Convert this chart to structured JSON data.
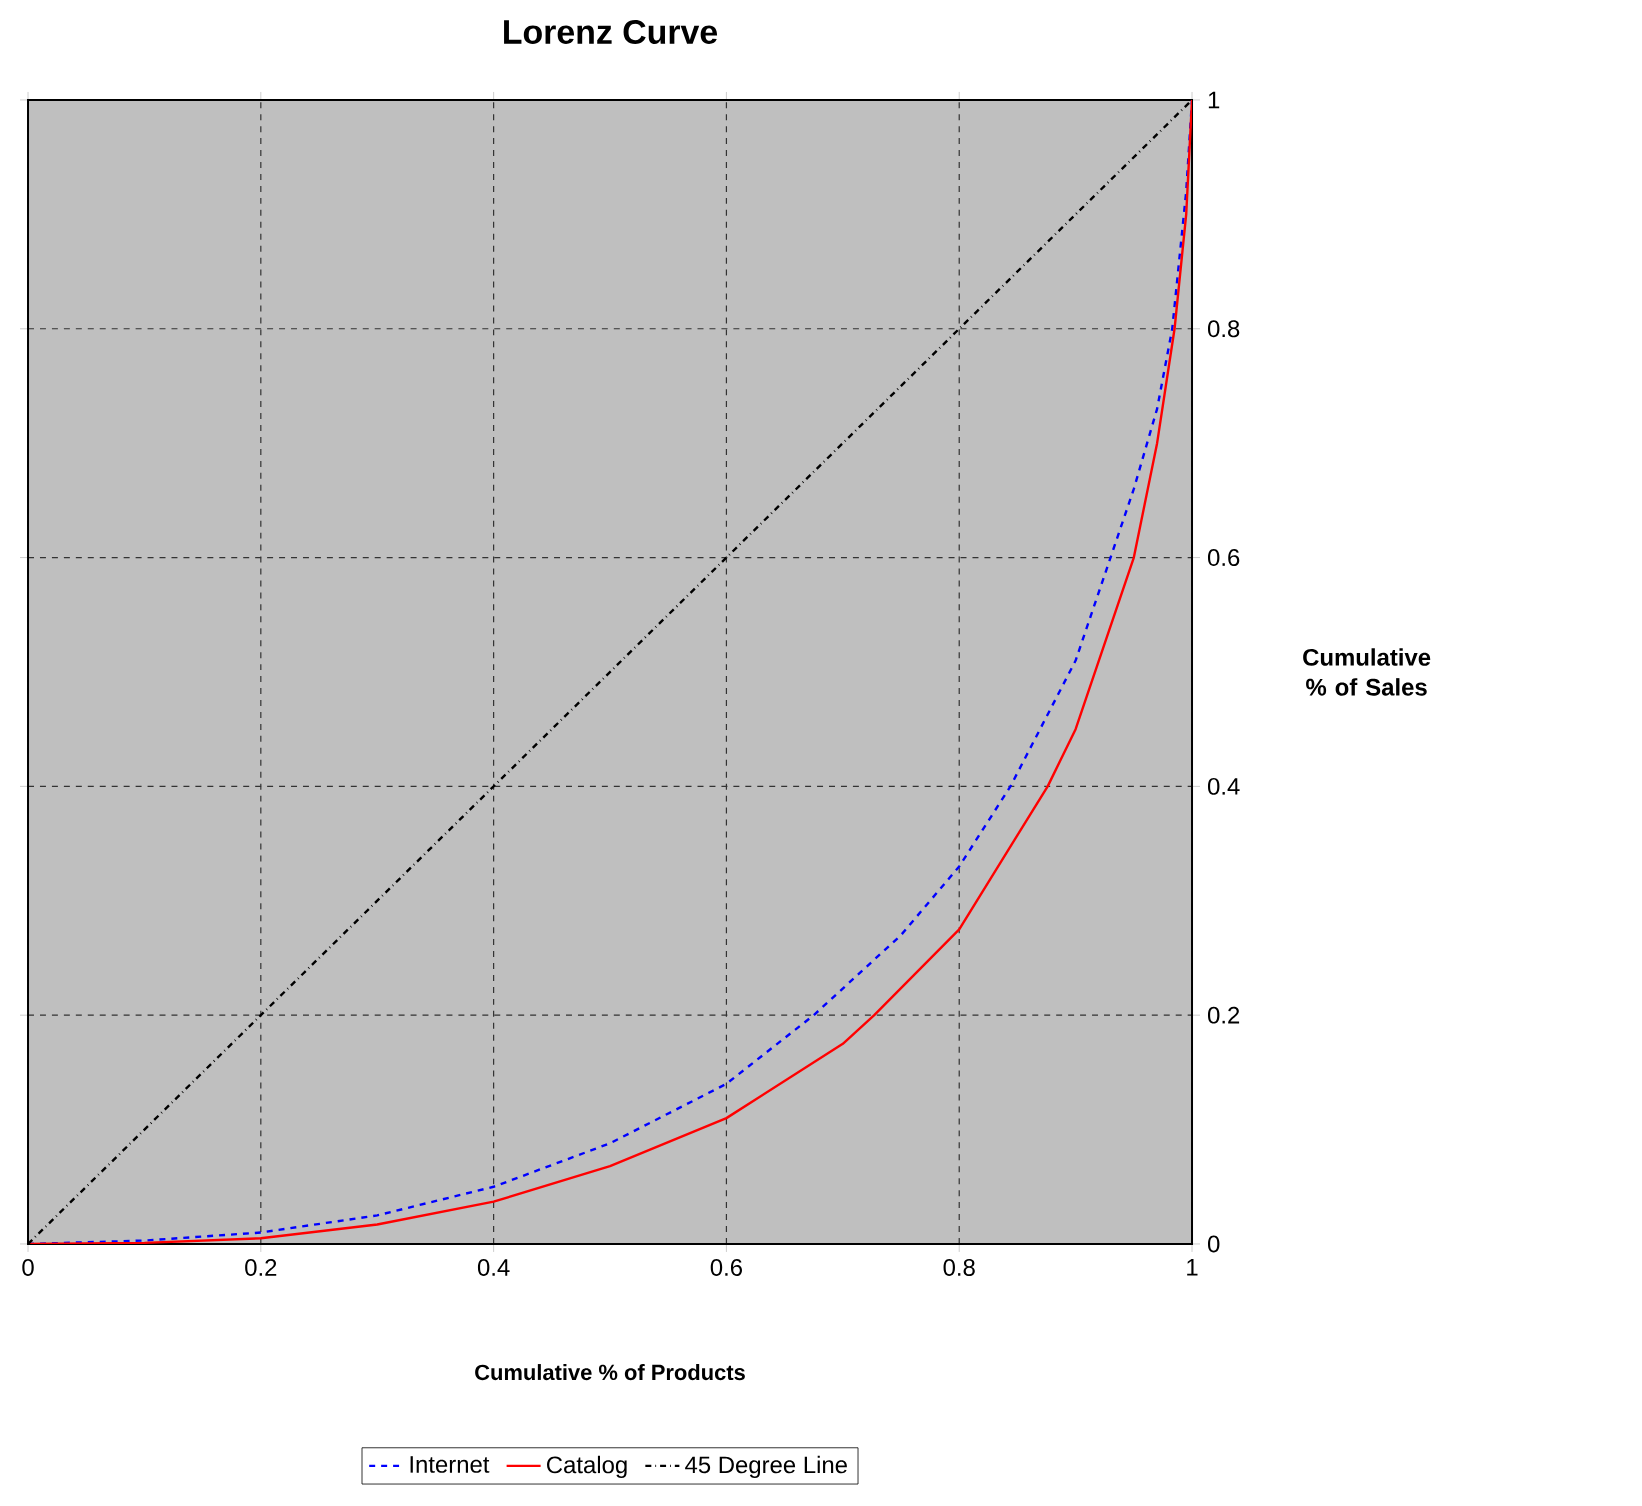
{
  "chart_data": {
    "type": "line",
    "title": "Lorenz Curve",
    "xlabel": "Cumulative % of Products",
    "ylabel": "Cumulative % of Sales",
    "xlim": [
      0,
      1
    ],
    "ylim": [
      0,
      1
    ],
    "xticks": [
      0,
      0.2,
      0.4,
      0.6,
      0.8,
      1
    ],
    "yticks": [
      0,
      0.2,
      0.4,
      0.6,
      0.8,
      1
    ],
    "grid": true,
    "legend": "bottom",
    "marker": "none",
    "series": [
      {
        "name": "Internet",
        "color": "#0000ff",
        "line_style": "dashed",
        "x": [
          0,
          0.1,
          0.2,
          0.3,
          0.4,
          0.5,
          0.6,
          0.675,
          0.75,
          0.8,
          0.844,
          0.9,
          0.93,
          0.95,
          0.97,
          0.983,
          0.995,
          1
        ],
        "values": [
          0,
          0.003,
          0.01,
          0.025,
          0.05,
          0.088,
          0.14,
          0.2,
          0.27,
          0.33,
          0.4,
          0.51,
          0.6,
          0.66,
          0.73,
          0.8,
          0.92,
          1
        ]
      },
      {
        "name": "Catalog",
        "color": "#ff0000",
        "line_style": "solid",
        "x": [
          0,
          0.1,
          0.2,
          0.3,
          0.4,
          0.5,
          0.6,
          0.7,
          0.727,
          0.8,
          0.876,
          0.9,
          0.95,
          0.97,
          0.985,
          0.995,
          1
        ],
        "values": [
          0,
          0.001,
          0.005,
          0.017,
          0.037,
          0.068,
          0.11,
          0.175,
          0.2,
          0.275,
          0.4,
          0.45,
          0.6,
          0.7,
          0.8,
          0.9,
          1
        ]
      },
      {
        "name": "45 Degree Line",
        "color": "#000000",
        "line_style": "dashdot",
        "x": [
          0,
          1
        ],
        "values": [
          0,
          1
        ]
      }
    ]
  }
}
